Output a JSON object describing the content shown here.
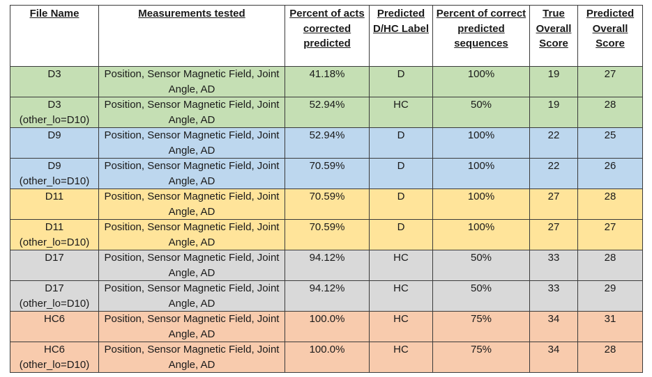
{
  "table": {
    "headers": {
      "file_name": "File Name",
      "measurements": "Measurements tested",
      "percent_acts": "Percent of acts corrected predicted",
      "predicted_label": "Predicted D/HC Label",
      "percent_sequences": "Percent of correct predicted sequences",
      "true_score": "True Overall Score",
      "predicted_score": "Predicted Overall Score"
    },
    "row_colors": {
      "green": "#c5dfb4",
      "blue": "#bdd7ee",
      "yellow": "#ffe49a",
      "gray": "#d9d9d9",
      "peach": "#f8cbad"
    },
    "rows": [
      {
        "file": "D3",
        "measurements": "Position, Sensor Magnetic Field, Joint Angle, AD",
        "percent_acts": "41.18%",
        "label": "D",
        "percent_sequences": "100%",
        "true_score": "19",
        "predicted_score": "27"
      },
      {
        "file": "D3 (other_lo=D10)",
        "measurements": "Position, Sensor Magnetic Field, Joint Angle, AD",
        "percent_acts": "52.94%",
        "label": "HC",
        "percent_sequences": "50%",
        "true_score": "19",
        "predicted_score": "28"
      },
      {
        "file": "D9",
        "measurements": "Position, Sensor Magnetic Field, Joint Angle, AD",
        "percent_acts": "52.94%",
        "label": "D",
        "percent_sequences": "100%",
        "true_score": "22",
        "predicted_score": "25"
      },
      {
        "file": "D9 (other_lo=D10)",
        "measurements": "Position, Sensor Magnetic Field, Joint Angle, AD",
        "percent_acts": "70.59%",
        "label": "D",
        "percent_sequences": "100%",
        "true_score": "22",
        "predicted_score": "26"
      },
      {
        "file": "D11",
        "measurements": "Position, Sensor Magnetic Field, Joint Angle, AD",
        "percent_acts": "70.59%",
        "label": "D",
        "percent_sequences": "100%",
        "true_score": "27",
        "predicted_score": "28"
      },
      {
        "file": "D11 (other_lo=D10)",
        "measurements": "Position, Sensor Magnetic Field, Joint Angle, AD",
        "percent_acts": "70.59%",
        "label": "D",
        "percent_sequences": "100%",
        "true_score": "27",
        "predicted_score": "27"
      },
      {
        "file": "D17",
        "measurements": "Position, Sensor Magnetic Field, Joint Angle, AD",
        "percent_acts": "94.12%",
        "label": "HC",
        "percent_sequences": "50%",
        "true_score": "33",
        "predicted_score": "28"
      },
      {
        "file": "D17 (other_lo=D10)",
        "measurements": "Position, Sensor Magnetic Field, Joint Angle, AD",
        "percent_acts": "94.12%",
        "label": "HC",
        "percent_sequences": "50%",
        "true_score": "33",
        "predicted_score": "29"
      },
      {
        "file": "HC6",
        "measurements": "Position, Sensor Magnetic Field, Joint Angle, AD",
        "percent_acts": "100.0%",
        "label": "HC",
        "percent_sequences": "75%",
        "true_score": "34",
        "predicted_score": "31"
      },
      {
        "file": "HC6 (other_lo=D10)",
        "measurements": "Position, Sensor Magnetic Field, Joint Angle, AD",
        "percent_acts": "100.0%",
        "label": "HC",
        "percent_sequences": "75%",
        "true_score": "34",
        "predicted_score": "28"
      }
    ]
  }
}
